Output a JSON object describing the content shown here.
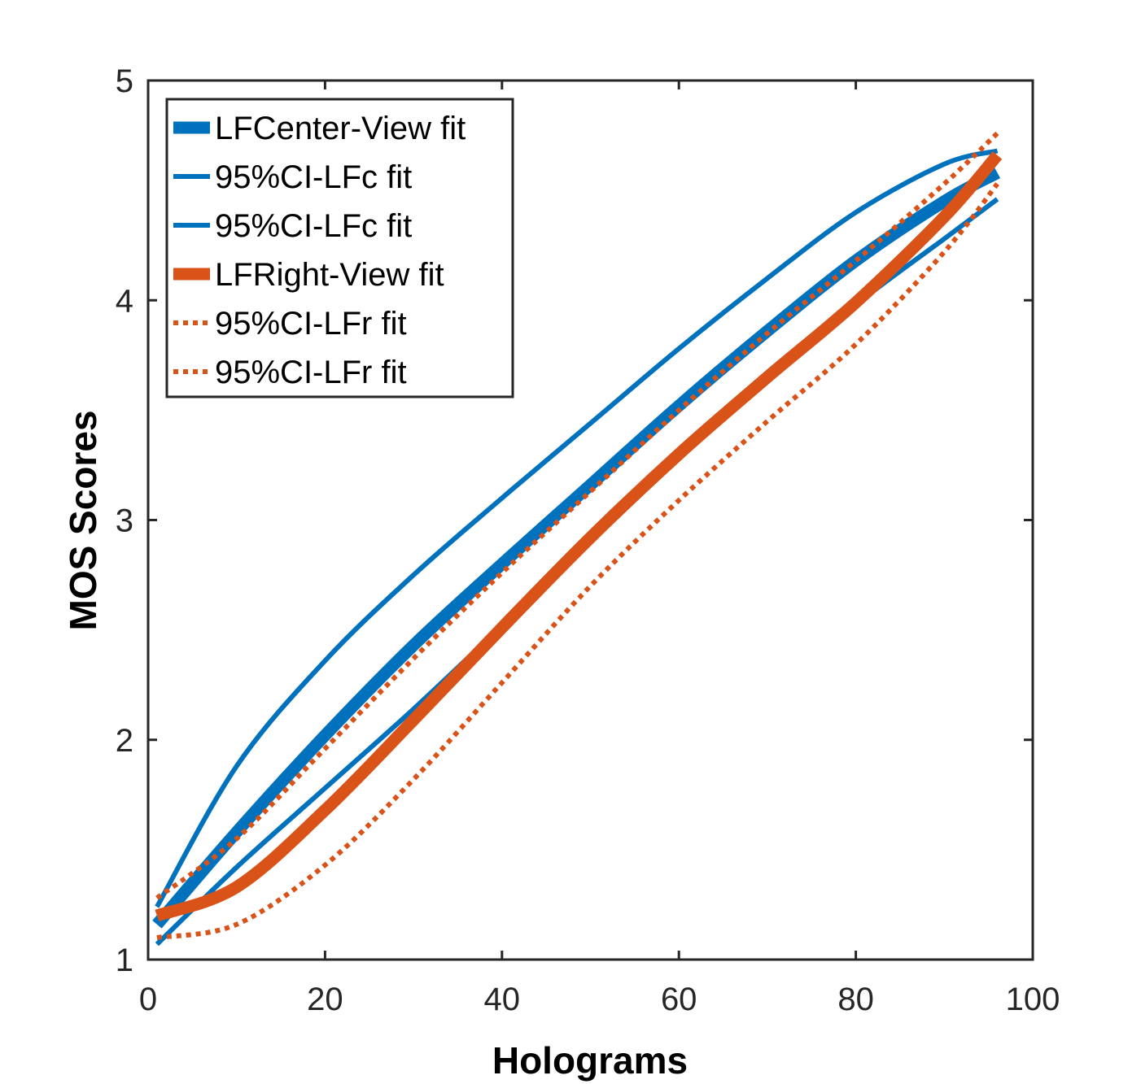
{
  "chart_data": {
    "type": "line",
    "title": "",
    "xlabel": "Holograms",
    "ylabel": "MOS Scores",
    "xlim": [
      0,
      100
    ],
    "ylim": [
      1,
      5
    ],
    "xticks": [
      0,
      20,
      40,
      60,
      80,
      100
    ],
    "yticks": [
      1,
      2,
      3,
      4,
      5
    ],
    "xtick_labels": [
      "0",
      "20",
      "40",
      "60",
      "80",
      "100"
    ],
    "ytick_labels": [
      "1",
      "2",
      "3",
      "4",
      "5"
    ],
    "grid": false,
    "legend_position": "top-left",
    "colors": {
      "blue": "#0072BD",
      "orange": "#D95319",
      "axis": "#262626"
    },
    "series": [
      {
        "name": "LFCenter-View fit",
        "color": "#0072BD",
        "style": "solid",
        "weight": "thick",
        "x": [
          1,
          10,
          20,
          30,
          40,
          50,
          60,
          70,
          80,
          90,
          96
        ],
        "y": [
          1.16,
          1.58,
          2.02,
          2.43,
          2.8,
          3.16,
          3.52,
          3.86,
          4.18,
          4.45,
          4.58
        ]
      },
      {
        "name": "95%CI-LFc fit",
        "color": "#0072BD",
        "style": "solid",
        "weight": "thin",
        "x": [
          1,
          10,
          20,
          30,
          40,
          50,
          60,
          70,
          80,
          90,
          96
        ],
        "y": [
          1.24,
          1.88,
          2.36,
          2.75,
          3.1,
          3.44,
          3.78,
          4.1,
          4.4,
          4.62,
          4.68
        ]
      },
      {
        "name": "95%CI-LFc fit",
        "color": "#0072BD",
        "style": "solid",
        "weight": "thin",
        "x": [
          1,
          10,
          20,
          30,
          40,
          50,
          60,
          70,
          80,
          90,
          96
        ],
        "y": [
          1.07,
          1.42,
          1.78,
          2.14,
          2.52,
          2.9,
          3.28,
          3.64,
          3.98,
          4.28,
          4.46
        ]
      },
      {
        "name": "LFRight-View fit",
        "color": "#D95319",
        "style": "solid",
        "weight": "thick",
        "x": [
          1,
          10,
          20,
          30,
          40,
          50,
          60,
          70,
          80,
          90,
          96
        ],
        "y": [
          1.2,
          1.33,
          1.68,
          2.09,
          2.51,
          2.92,
          3.3,
          3.65,
          3.99,
          4.38,
          4.66
        ]
      },
      {
        "name": "95%CI-LFr fit",
        "color": "#D95319",
        "style": "dotted",
        "weight": "medium",
        "x": [
          1,
          10,
          20,
          30,
          40,
          50,
          60,
          70,
          80,
          90,
          96
        ],
        "y": [
          1.28,
          1.55,
          1.96,
          2.37,
          2.76,
          3.13,
          3.5,
          3.85,
          4.18,
          4.53,
          4.76
        ]
      },
      {
        "name": "95%CI-LFr fit",
        "color": "#D95319",
        "style": "dotted",
        "weight": "medium",
        "x": [
          1,
          10,
          20,
          30,
          40,
          50,
          60,
          70,
          80,
          90,
          96
        ],
        "y": [
          1.1,
          1.16,
          1.43,
          1.82,
          2.26,
          2.7,
          3.09,
          3.45,
          3.8,
          4.22,
          4.53
        ]
      }
    ]
  }
}
